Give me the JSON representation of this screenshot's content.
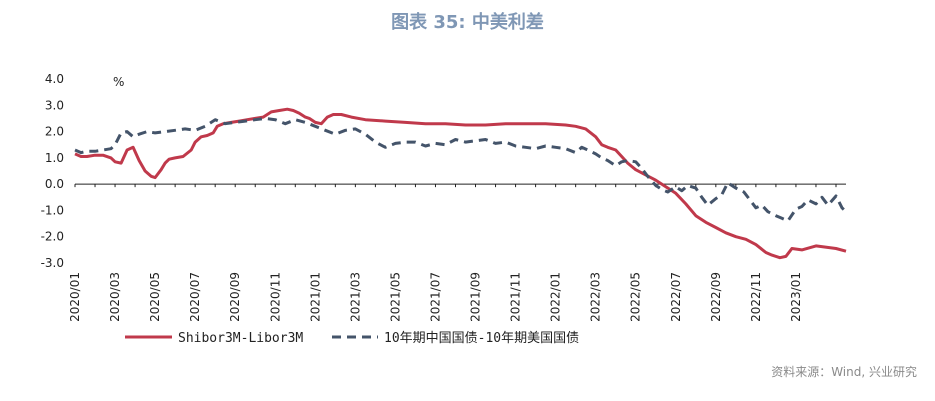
{
  "title": "图表 35: 中美利差",
  "source": "资料来源：Wind, 兴业研究",
  "chart_data": {
    "type": "line",
    "unit_label": "%",
    "ylim": [
      -3.0,
      4.0
    ],
    "y_ticks": [
      "4.0",
      "3.0",
      "2.0",
      "1.0",
      "0.0",
      "-1.0",
      "-2.0",
      "-3.0"
    ],
    "x_ticks": [
      "2020/01",
      "2020/03",
      "2020/05",
      "2020/07",
      "2020/09",
      "2020/11",
      "2021/01",
      "2021/03",
      "2021/05",
      "2021/07",
      "2021/09",
      "2021/11",
      "2022/01",
      "2022/03",
      "2022/05",
      "2022/07",
      "2022/09",
      "2022/11",
      "2023/01"
    ],
    "grid": false,
    "legend_position": "bottom",
    "x_unit": "months since 2020/01",
    "series": [
      {
        "name": "Shibor3M-Libor3M",
        "color": "#c0394b",
        "style": "solid",
        "x": [
          0,
          0.3,
          0.6,
          1.0,
          1.4,
          1.8,
          2.0,
          2.3,
          2.6,
          2.9,
          3.2,
          3.5,
          3.8,
          4.0,
          4.3,
          4.5,
          4.7,
          5.0,
          5.4,
          5.8,
          6.0,
          6.3,
          6.6,
          6.9,
          7.1,
          7.4,
          7.8,
          8.2,
          8.6,
          9.0,
          9.4,
          9.8,
          10.2,
          10.6,
          10.9,
          11.2,
          11.5,
          11.7,
          12.0,
          12.3,
          12.6,
          12.9,
          13.3,
          13.8,
          14.5,
          15.5,
          16.5,
          17.5,
          18.5,
          19.5,
          20.5,
          21.5,
          22.5,
          23.5,
          24.5,
          25.0,
          25.5,
          26.0,
          26.3,
          26.6,
          27.0,
          27.3,
          27.6,
          28.0,
          28.5,
          29.0,
          29.5,
          30.0,
          30.5,
          31.0,
          31.5,
          32.0,
          32.5,
          33.0,
          33.5,
          34.0,
          34.5,
          34.8,
          35.2,
          35.5,
          35.8,
          36.3,
          37.0,
          38.0,
          38.5
        ],
        "y": [
          1.15,
          1.05,
          1.05,
          1.1,
          1.1,
          1.0,
          0.85,
          0.8,
          1.3,
          1.4,
          0.9,
          0.5,
          0.3,
          0.25,
          0.55,
          0.8,
          0.95,
          1.0,
          1.05,
          1.3,
          1.6,
          1.8,
          1.85,
          1.95,
          2.2,
          2.3,
          2.35,
          2.4,
          2.45,
          2.5,
          2.55,
          2.75,
          2.8,
          2.85,
          2.8,
          2.7,
          2.55,
          2.5,
          2.35,
          2.3,
          2.55,
          2.65,
          2.65,
          2.55,
          2.45,
          2.4,
          2.35,
          2.3,
          2.3,
          2.25,
          2.25,
          2.3,
          2.3,
          2.3,
          2.25,
          2.2,
          2.1,
          1.8,
          1.5,
          1.4,
          1.3,
          1.05,
          0.8,
          0.55,
          0.35,
          0.15,
          -0.1,
          -0.35,
          -0.75,
          -1.2,
          -1.45,
          -1.65,
          -1.85,
          -2.0,
          -2.1,
          -2.3,
          -2.6,
          -2.7,
          -2.8,
          -2.75,
          -2.45,
          -2.5,
          -2.35,
          -2.45,
          -2.55
        ]
      },
      {
        "name": "10年期中国国债-10年期美国国债",
        "color": "#44546a",
        "style": "dashed",
        "x": [
          0,
          0.3,
          0.6,
          1.0,
          1.4,
          1.8,
          2.0,
          2.3,
          2.6,
          2.9,
          3.2,
          3.6,
          4.0,
          4.5,
          5.0,
          5.5,
          6.0,
          6.5,
          7.0,
          7.5,
          8.0,
          8.5,
          9.0,
          9.5,
          10.0,
          10.5,
          11.0,
          11.5,
          12.0,
          12.5,
          13.0,
          13.5,
          14.0,
          14.5,
          15.0,
          15.5,
          16.0,
          16.5,
          17.0,
          17.5,
          18.0,
          18.5,
          19.0,
          19.5,
          20.0,
          20.5,
          21.0,
          21.5,
          22.0,
          22.5,
          23.0,
          23.5,
          24.0,
          24.5,
          25.0,
          25.3,
          25.6,
          26.0,
          26.3,
          26.6,
          27.0,
          27.3,
          27.6,
          28.0,
          28.3,
          28.6,
          29.0,
          29.3,
          29.6,
          30.0,
          30.3,
          30.6,
          31.0,
          31.3,
          31.6,
          32.0,
          32.3,
          32.6,
          33.0,
          33.4,
          33.8,
          34.0,
          34.3,
          34.6,
          35.0,
          35.3,
          35.6,
          36.0,
          36.3,
          36.6,
          37.0,
          37.3,
          37.6,
          38.0,
          38.3,
          38.5
        ],
        "y": [
          1.3,
          1.2,
          1.25,
          1.25,
          1.3,
          1.35,
          1.5,
          1.95,
          2.0,
          1.8,
          1.9,
          2.0,
          1.95,
          2.0,
          2.05,
          2.1,
          2.05,
          2.2,
          2.45,
          2.3,
          2.35,
          2.4,
          2.45,
          2.5,
          2.45,
          2.3,
          2.45,
          2.35,
          2.2,
          2.05,
          1.9,
          2.05,
          2.1,
          1.9,
          1.6,
          1.4,
          1.55,
          1.6,
          1.6,
          1.45,
          1.55,
          1.5,
          1.7,
          1.6,
          1.65,
          1.7,
          1.55,
          1.6,
          1.45,
          1.4,
          1.35,
          1.45,
          1.4,
          1.35,
          1.2,
          1.4,
          1.3,
          1.15,
          1.0,
          0.9,
          0.7,
          0.85,
          0.9,
          0.85,
          0.6,
          0.3,
          -0.05,
          -0.2,
          -0.3,
          -0.1,
          -0.25,
          -0.05,
          -0.15,
          -0.5,
          -0.8,
          -0.55,
          -0.4,
          0.05,
          -0.15,
          -0.3,
          -0.7,
          -0.9,
          -0.8,
          -1.05,
          -1.2,
          -1.3,
          -1.4,
          -0.95,
          -0.85,
          -0.6,
          -0.75,
          -0.5,
          -0.8,
          -0.45,
          -0.9,
          -1.05
        ]
      }
    ]
  }
}
